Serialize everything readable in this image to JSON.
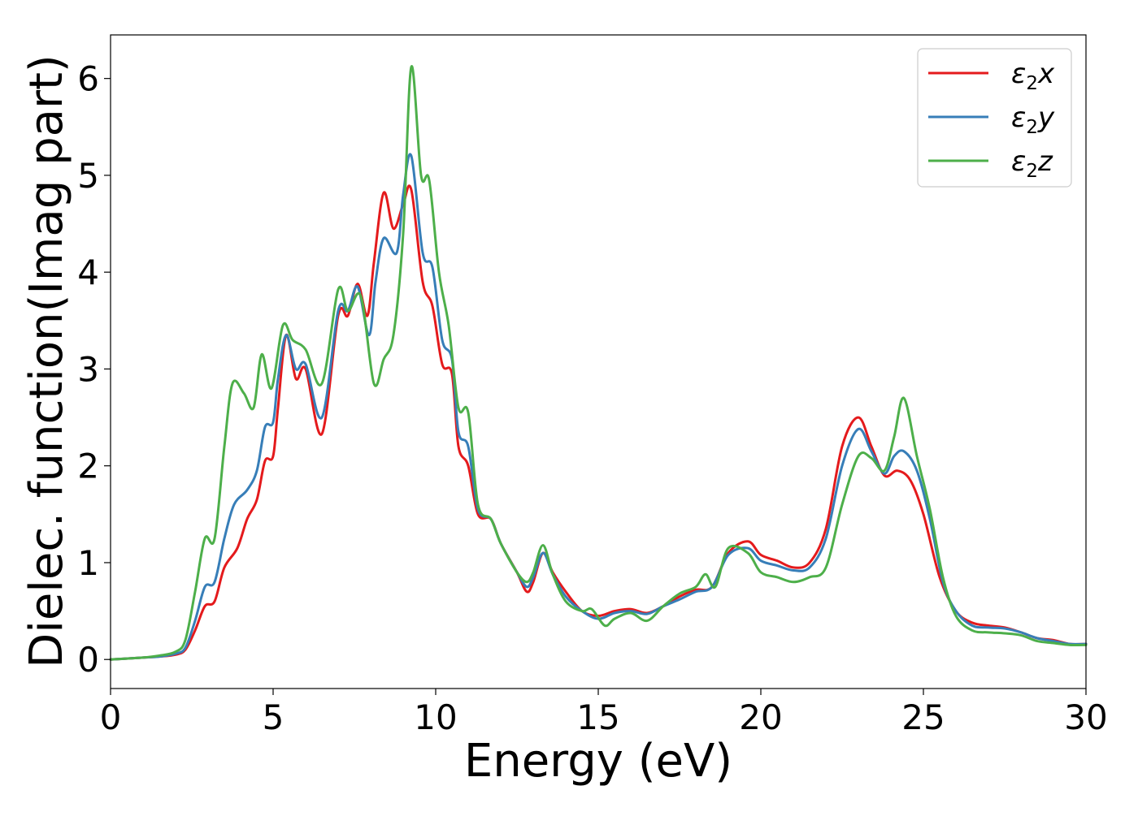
{
  "chart_data": {
    "type": "line",
    "title": "",
    "xlabel": "Energy (eV)",
    "ylabel": "Dielec. function(Imag part)",
    "xlim": [
      0,
      30
    ],
    "ylim": [
      -0.3,
      6.45
    ],
    "xticks": [
      0,
      5,
      10,
      15,
      20,
      25,
      30
    ],
    "yticks": [
      0,
      1,
      2,
      3,
      4,
      5,
      6
    ],
    "grid": false,
    "legend_position": "top-right",
    "series": [
      {
        "name": "ε₂x",
        "legend_base": "ε",
        "legend_sub": "2",
        "legend_var": "x",
        "color": "#e41a1c",
        "points": [
          [
            0,
            0
          ],
          [
            1,
            0.02
          ],
          [
            1.5,
            0.03
          ],
          [
            2,
            0.05
          ],
          [
            2.3,
            0.1
          ],
          [
            2.6,
            0.3
          ],
          [
            2.9,
            0.55
          ],
          [
            3.2,
            0.6
          ],
          [
            3.5,
            0.95
          ],
          [
            3.9,
            1.15
          ],
          [
            4.2,
            1.45
          ],
          [
            4.5,
            1.65
          ],
          [
            4.75,
            2.05
          ],
          [
            5.0,
            2.1
          ],
          [
            5.15,
            2.6
          ],
          [
            5.4,
            3.35
          ],
          [
            5.7,
            2.9
          ],
          [
            6.0,
            3.0
          ],
          [
            6.5,
            2.33
          ],
          [
            7.0,
            3.55
          ],
          [
            7.3,
            3.55
          ],
          [
            7.6,
            3.88
          ],
          [
            7.9,
            3.55
          ],
          [
            8.1,
            4.1
          ],
          [
            8.4,
            4.82
          ],
          [
            8.7,
            4.45
          ],
          [
            9.0,
            4.7
          ],
          [
            9.25,
            4.85
          ],
          [
            9.6,
            3.9
          ],
          [
            9.9,
            3.65
          ],
          [
            10.2,
            3.05
          ],
          [
            10.5,
            2.95
          ],
          [
            10.7,
            2.2
          ],
          [
            11.0,
            2.0
          ],
          [
            11.3,
            1.5
          ],
          [
            11.7,
            1.45
          ],
          [
            12.0,
            1.2
          ],
          [
            12.5,
            0.9
          ],
          [
            12.8,
            0.7
          ],
          [
            13.0,
            0.8
          ],
          [
            13.3,
            1.1
          ],
          [
            13.6,
            0.9
          ],
          [
            14.0,
            0.7
          ],
          [
            14.5,
            0.5
          ],
          [
            15.0,
            0.45
          ],
          [
            15.5,
            0.5
          ],
          [
            16.0,
            0.52
          ],
          [
            16.5,
            0.48
          ],
          [
            17.0,
            0.55
          ],
          [
            17.5,
            0.65
          ],
          [
            18.0,
            0.72
          ],
          [
            18.5,
            0.75
          ],
          [
            19.0,
            1.1
          ],
          [
            19.6,
            1.22
          ],
          [
            20.0,
            1.08
          ],
          [
            20.5,
            1.02
          ],
          [
            21.0,
            0.95
          ],
          [
            21.5,
            1.0
          ],
          [
            22.0,
            1.35
          ],
          [
            22.5,
            2.2
          ],
          [
            23.0,
            2.5
          ],
          [
            23.4,
            2.2
          ],
          [
            23.8,
            1.9
          ],
          [
            24.2,
            1.95
          ],
          [
            24.6,
            1.85
          ],
          [
            25.0,
            1.5
          ],
          [
            25.5,
            0.85
          ],
          [
            26.0,
            0.5
          ],
          [
            26.5,
            0.38
          ],
          [
            27.0,
            0.35
          ],
          [
            27.5,
            0.33
          ],
          [
            28.0,
            0.28
          ],
          [
            28.5,
            0.22
          ],
          [
            29.0,
            0.2
          ],
          [
            29.5,
            0.16
          ],
          [
            30,
            0.16
          ]
        ]
      },
      {
        "name": "ε₂y",
        "legend_base": "ε",
        "legend_sub": "2",
        "legend_var": "y",
        "color": "#377eb8",
        "points": [
          [
            0,
            0
          ],
          [
            1,
            0.02
          ],
          [
            1.5,
            0.03
          ],
          [
            2,
            0.06
          ],
          [
            2.3,
            0.12
          ],
          [
            2.6,
            0.4
          ],
          [
            2.9,
            0.75
          ],
          [
            3.2,
            0.8
          ],
          [
            3.5,
            1.25
          ],
          [
            3.8,
            1.6
          ],
          [
            4.2,
            1.75
          ],
          [
            4.5,
            1.95
          ],
          [
            4.75,
            2.4
          ],
          [
            5.0,
            2.45
          ],
          [
            5.15,
            2.9
          ],
          [
            5.4,
            3.35
          ],
          [
            5.7,
            3.0
          ],
          [
            6.0,
            3.05
          ],
          [
            6.5,
            2.5
          ],
          [
            7.0,
            3.6
          ],
          [
            7.3,
            3.6
          ],
          [
            7.6,
            3.85
          ],
          [
            7.95,
            3.35
          ],
          [
            8.15,
            3.9
          ],
          [
            8.4,
            4.35
          ],
          [
            8.8,
            4.2
          ],
          [
            9.0,
            4.8
          ],
          [
            9.25,
            5.2
          ],
          [
            9.6,
            4.2
          ],
          [
            9.9,
            4.05
          ],
          [
            10.2,
            3.3
          ],
          [
            10.5,
            3.1
          ],
          [
            10.7,
            2.35
          ],
          [
            11.0,
            2.2
          ],
          [
            11.3,
            1.55
          ],
          [
            11.7,
            1.45
          ],
          [
            12.0,
            1.2
          ],
          [
            12.5,
            0.9
          ],
          [
            12.8,
            0.75
          ],
          [
            13.0,
            0.85
          ],
          [
            13.3,
            1.1
          ],
          [
            13.6,
            0.88
          ],
          [
            14.0,
            0.65
          ],
          [
            14.5,
            0.5
          ],
          [
            15.0,
            0.42
          ],
          [
            15.5,
            0.48
          ],
          [
            16.0,
            0.5
          ],
          [
            16.5,
            0.47
          ],
          [
            17.0,
            0.55
          ],
          [
            17.5,
            0.62
          ],
          [
            18.0,
            0.7
          ],
          [
            18.5,
            0.75
          ],
          [
            19.0,
            1.08
          ],
          [
            19.6,
            1.15
          ],
          [
            20.0,
            1.02
          ],
          [
            20.5,
            0.97
          ],
          [
            21.0,
            0.92
          ],
          [
            21.5,
            0.95
          ],
          [
            22.0,
            1.25
          ],
          [
            22.5,
            2.0
          ],
          [
            23.0,
            2.38
          ],
          [
            23.4,
            2.15
          ],
          [
            23.8,
            1.92
          ],
          [
            24.1,
            2.1
          ],
          [
            24.4,
            2.15
          ],
          [
            24.8,
            1.95
          ],
          [
            25.2,
            1.45
          ],
          [
            25.6,
            0.8
          ],
          [
            26.0,
            0.5
          ],
          [
            26.5,
            0.35
          ],
          [
            27.0,
            0.33
          ],
          [
            27.5,
            0.32
          ],
          [
            28.0,
            0.28
          ],
          [
            28.5,
            0.22
          ],
          [
            29.0,
            0.19
          ],
          [
            29.5,
            0.16
          ],
          [
            30,
            0.16
          ]
        ]
      },
      {
        "name": "ε₂z",
        "legend_base": "ε",
        "legend_sub": "2",
        "legend_var": "z",
        "color": "#4daf4a",
        "points": [
          [
            0,
            0
          ],
          [
            1,
            0.02
          ],
          [
            1.5,
            0.04
          ],
          [
            2,
            0.08
          ],
          [
            2.3,
            0.2
          ],
          [
            2.6,
            0.7
          ],
          [
            2.9,
            1.25
          ],
          [
            3.2,
            1.25
          ],
          [
            3.5,
            2.2
          ],
          [
            3.75,
            2.85
          ],
          [
            4.1,
            2.75
          ],
          [
            4.4,
            2.6
          ],
          [
            4.65,
            3.15
          ],
          [
            4.95,
            2.8
          ],
          [
            5.3,
            3.45
          ],
          [
            5.6,
            3.3
          ],
          [
            6.0,
            3.2
          ],
          [
            6.5,
            2.85
          ],
          [
            7.0,
            3.82
          ],
          [
            7.3,
            3.6
          ],
          [
            7.7,
            3.75
          ],
          [
            8.1,
            2.85
          ],
          [
            8.4,
            3.1
          ],
          [
            8.7,
            3.35
          ],
          [
            9.0,
            4.4
          ],
          [
            9.25,
            6.12
          ],
          [
            9.55,
            5.0
          ],
          [
            9.8,
            4.95
          ],
          [
            10.1,
            4.0
          ],
          [
            10.4,
            3.45
          ],
          [
            10.7,
            2.6
          ],
          [
            11.0,
            2.55
          ],
          [
            11.3,
            1.6
          ],
          [
            11.7,
            1.45
          ],
          [
            12.0,
            1.2
          ],
          [
            12.5,
            0.9
          ],
          [
            12.8,
            0.8
          ],
          [
            13.0,
            0.9
          ],
          [
            13.3,
            1.18
          ],
          [
            13.6,
            0.88
          ],
          [
            14.0,
            0.6
          ],
          [
            14.5,
            0.5
          ],
          [
            14.8,
            0.52
          ],
          [
            15.2,
            0.35
          ],
          [
            15.5,
            0.42
          ],
          [
            16.0,
            0.48
          ],
          [
            16.5,
            0.4
          ],
          [
            17.0,
            0.55
          ],
          [
            17.5,
            0.68
          ],
          [
            18.0,
            0.75
          ],
          [
            18.3,
            0.88
          ],
          [
            18.6,
            0.75
          ],
          [
            19.0,
            1.15
          ],
          [
            19.6,
            1.1
          ],
          [
            20.0,
            0.9
          ],
          [
            20.5,
            0.85
          ],
          [
            21.0,
            0.8
          ],
          [
            21.5,
            0.85
          ],
          [
            22.0,
            0.95
          ],
          [
            22.5,
            1.6
          ],
          [
            23.0,
            2.1
          ],
          [
            23.4,
            2.08
          ],
          [
            23.8,
            1.95
          ],
          [
            24.1,
            2.3
          ],
          [
            24.4,
            2.7
          ],
          [
            24.8,
            2.1
          ],
          [
            25.2,
            1.55
          ],
          [
            25.6,
            0.85
          ],
          [
            26.0,
            0.45
          ],
          [
            26.5,
            0.3
          ],
          [
            27.0,
            0.28
          ],
          [
            27.5,
            0.27
          ],
          [
            28.0,
            0.25
          ],
          [
            28.5,
            0.19
          ],
          [
            29.0,
            0.17
          ],
          [
            29.5,
            0.15
          ],
          [
            30,
            0.15
          ]
        ]
      }
    ]
  }
}
